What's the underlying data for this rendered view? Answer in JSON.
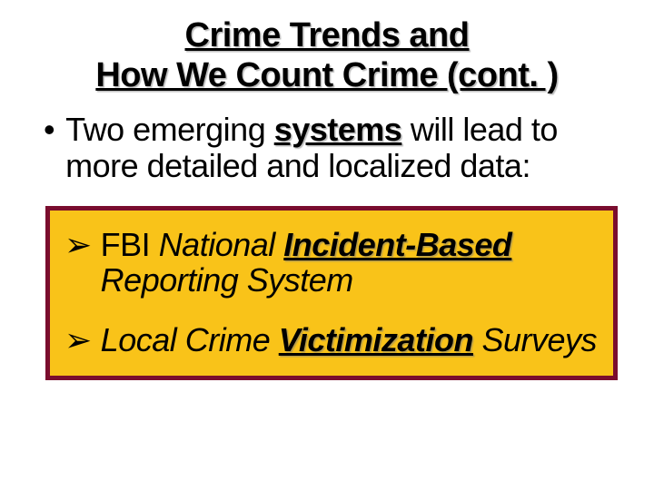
{
  "slide": {
    "title_line1": "Crime Trends and",
    "title_line2": "How We Count Crime (cont. )",
    "bullet": {
      "marker": "•",
      "text_before": "Two emerging ",
      "text_underlined": "systems",
      "text_after": " will lead to more detailed and localized data:"
    },
    "box": {
      "border_color": "#7a0d2e",
      "background_color": "#f9c319",
      "items": [
        {
          "arrow": "➢",
          "prefix_upright": " FBI ",
          "prefix_italic": "National ",
          "underlined": "Incident-Based",
          "suffix": " Reporting System"
        },
        {
          "arrow": "➢",
          "prefix_upright": "",
          "prefix_italic": " Local Crime ",
          "underlined": "Victimization",
          "suffix": " Surveys"
        }
      ]
    }
  },
  "colors": {
    "background": "#ffffff",
    "text": "#000000",
    "box_border": "#7a0d2e",
    "box_fill": "#f9c319"
  }
}
